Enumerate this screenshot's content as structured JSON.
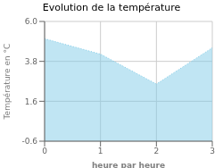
{
  "chart_data": {
    "type": "area",
    "title": "Evolution de la température",
    "xlabel": "heure par heure",
    "ylabel": "Température en °C",
    "x": [
      0,
      1,
      2,
      3
    ],
    "values": [
      5.05,
      4.2,
      2.55,
      4.55
    ],
    "xlim": [
      0,
      3
    ],
    "ylim": [
      -0.6,
      6.0
    ],
    "xticks": [
      0,
      1,
      2,
      3
    ],
    "yticks": [
      -0.6,
      1.6,
      3.8,
      {
        "value": 6.0,
        "label": "6.0"
      }
    ],
    "color": "#82cce8",
    "line_style": "dotted",
    "grid": true
  }
}
